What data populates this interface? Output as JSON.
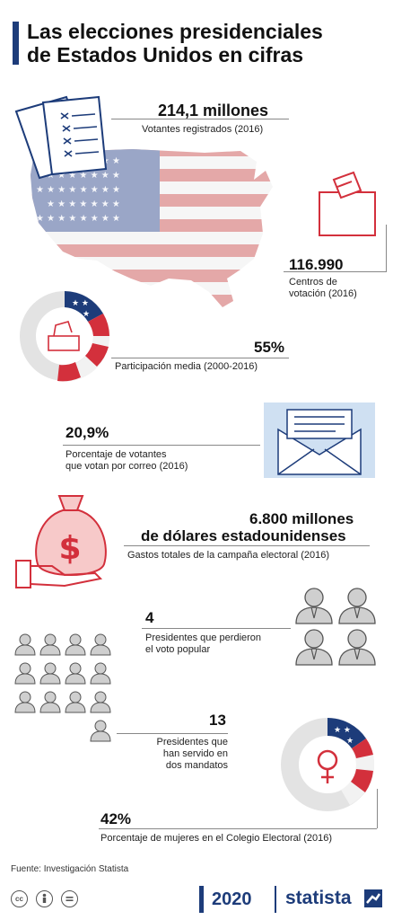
{
  "title": {
    "line1": "Las elecciones presidenciales",
    "line2": "de Estados Unidos en cifras"
  },
  "stats": {
    "registered": {
      "value": "214,1 millones",
      "label": "Votantes registrados (2016)"
    },
    "polling": {
      "value": "116.990",
      "label1": "Centros de",
      "label2": "votación (2016)"
    },
    "turnout": {
      "value": "55%",
      "label": "Participación media (2000-2016)"
    },
    "mail": {
      "value": "20,9%",
      "label1": "Porcentaje de votantes",
      "label2": "que votan por correo (2016)"
    },
    "spending": {
      "value1": "6.800 millones",
      "value2": "de dólares estadounidenses",
      "label": "Gastos totales de la campaña electoral (2016)"
    },
    "lost_popular": {
      "value": "4",
      "label1": "Presidentes que perdieron",
      "label2": "el voto popular"
    },
    "two_terms": {
      "value": "13",
      "label1": "Presidentes que",
      "label2": "han servido en",
      "label3": "dos mandatos"
    },
    "women": {
      "value": "42%",
      "label": "Porcentaje de mujeres en el Colegio Electoral (2016)"
    }
  },
  "footer": {
    "source": "Fuente: Investigación Statista",
    "cc": "cc",
    "logo_2020": "2020",
    "logo_statista": "statista"
  },
  "colors": {
    "navy": "#1d3c7a",
    "red": "#d3303c",
    "grey": "#e3e3e3",
    "light_blue": "#cfe0f2"
  },
  "icons": [
    "ballot-icon",
    "usa-flag-map",
    "ballot-box-icon",
    "donut-flag-icon",
    "envelope-icon",
    "money-bag-icon",
    "person-icon",
    "venus-symbol-icon",
    "statista-logo-icon"
  ]
}
